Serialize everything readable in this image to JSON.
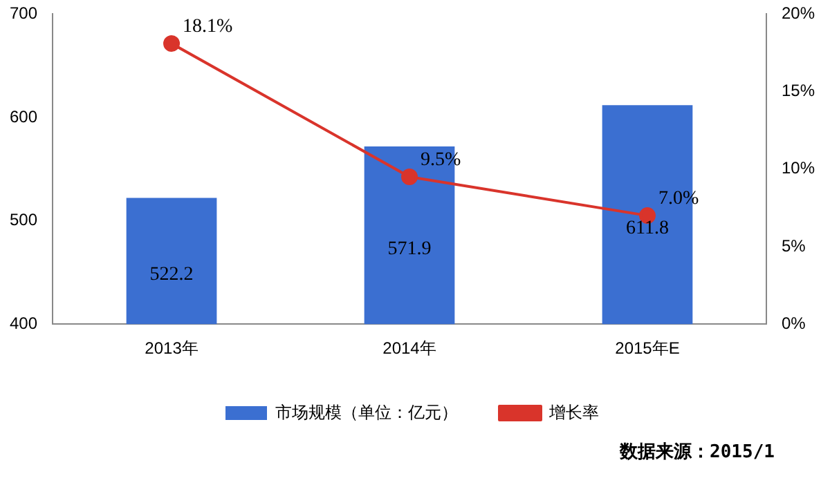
{
  "chart_data": {
    "type": "bar",
    "categories": [
      "2013年",
      "2014年",
      "2015年E"
    ],
    "series": [
      {
        "name": "市场规模（单位：亿元）",
        "color": "#3b6fd1",
        "values": [
          522.2,
          571.9,
          611.8
        ],
        "value_labels": [
          "522.2",
          "571.9",
          "611.8"
        ]
      },
      {
        "name": "增长率",
        "type": "line",
        "axis": "y2",
        "color": "#d9342b",
        "values": [
          18.1,
          9.5,
          7.0
        ],
        "value_labels": [
          "18.1%",
          "9.5%",
          "7.0%"
        ],
        "marker": "circle"
      }
    ],
    "ylim": [
      400,
      700
    ],
    "yticks": [
      400,
      500,
      600,
      700
    ],
    "y2lim": [
      0,
      20
    ],
    "y2ticks": [
      {
        "value": 0,
        "label": "0%"
      },
      {
        "value": 5,
        "label": "5%"
      },
      {
        "value": 10,
        "label": "10%"
      },
      {
        "value": 15,
        "label": "15%"
      },
      {
        "value": 20,
        "label": "20%"
      }
    ],
    "grid": false,
    "legend": "bottom",
    "annotations": [
      "数据来源：2015/1"
    ]
  }
}
